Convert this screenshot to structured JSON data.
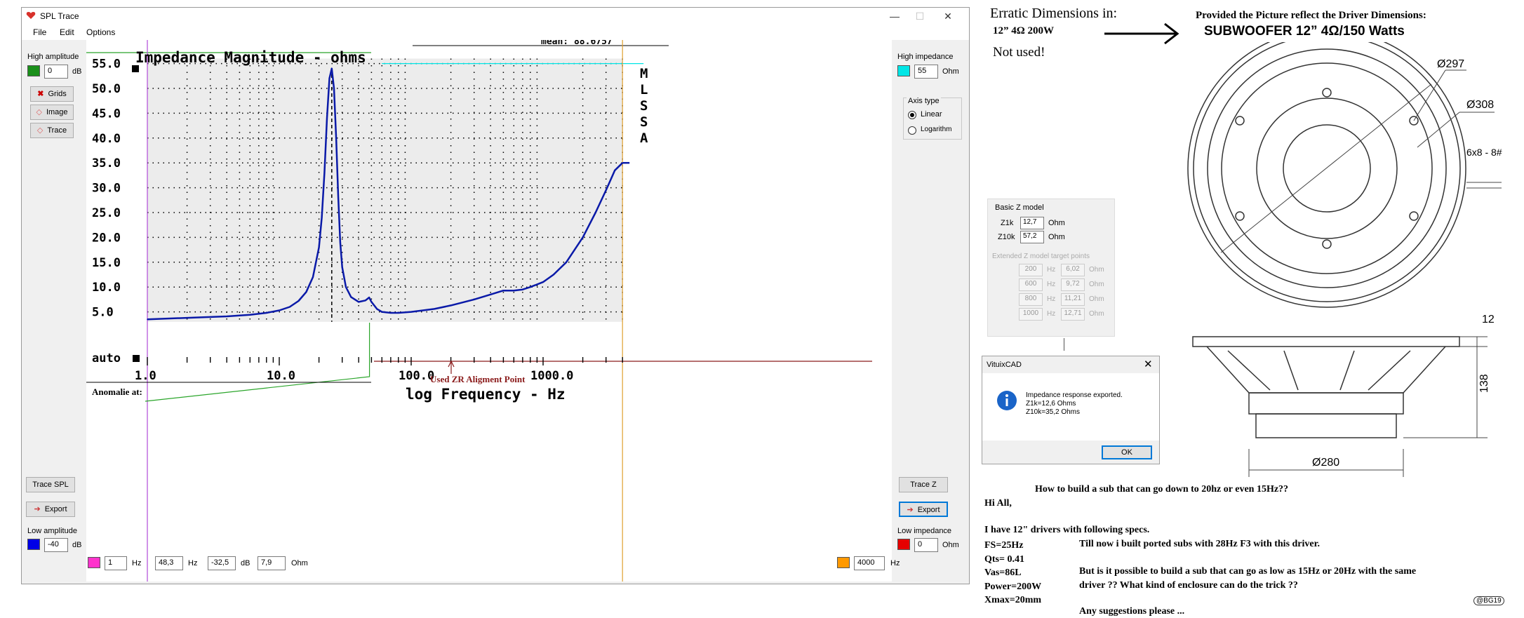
{
  "window": {
    "title": "SPL Trace",
    "menu": [
      "File",
      "Edit",
      "Options"
    ],
    "controls": {
      "minimize": "—",
      "maximize": "☐",
      "close": "✕"
    }
  },
  "left_panel": {
    "high_amplitude_label": "High amplitude",
    "high_amplitude_value": "0",
    "high_amplitude_unit": "dB",
    "high_amplitude_color": "#1a8f1a",
    "grids_label": "Grids",
    "image_label": "Image",
    "trace_label": "Trace",
    "trace_spl_label": "Trace SPL",
    "export_label": "Export",
    "low_amplitude_label": "Low amplitude",
    "low_amplitude_value": "-40",
    "low_amplitude_unit": "dB",
    "low_amplitude_color": "#0000e6"
  },
  "right_panel": {
    "high_impedance_label": "High impedance",
    "high_impedance_value": "55",
    "high_impedance_unit": "Ohm",
    "high_impedance_color": "#00e6e6",
    "axis_type_label": "Axis type",
    "axis_linear": "Linear",
    "axis_log": "Logarithm",
    "trace_z_label": "Trace Z",
    "export_label": "Export",
    "low_impedance_label": "Low impedance",
    "low_impedance_value": "0",
    "low_impedance_unit": "Ohm",
    "low_impedance_color": "#e60000"
  },
  "bottom_bar": {
    "marker_color": "#ff33cc",
    "marker_value": "1",
    "hz1": "Hz",
    "freq_value": "48,3",
    "hz2": "Hz",
    "db_value": "-32,5",
    "db_unit": "dB",
    "ohm_value": "7,9",
    "ohm_unit": "Ohm",
    "end_color": "#ff9900",
    "end_value": "4000",
    "end_unit": "Hz"
  },
  "plot": {
    "mean_text": "mean: 88.6757",
    "mlssa": [
      "M",
      "L",
      "S",
      "S",
      "A"
    ],
    "anomalie_label": "Anomalie at:",
    "zr_label": "Used ZR Aligment Point"
  },
  "chart_data": {
    "type": "line",
    "title": "Impedance Magnitude - ohms",
    "xlabel": "log Frequency - Hz",
    "ylabel": "",
    "x_scale": "log",
    "xlim": [
      1,
      4000
    ],
    "ylim": [
      0,
      60
    ],
    "x_tick_labels": [
      "1.0",
      "10.0",
      "100.0",
      "1000.0"
    ],
    "x_tick_values": [
      1,
      10,
      100,
      1000
    ],
    "y_tick_labels": [
      "5.0",
      "10.0",
      "15.0",
      "20.0",
      "25.0",
      "30.0",
      "35.0",
      "40.0",
      "45.0",
      "50.0",
      "55.0",
      "auto"
    ],
    "y_tick_values": [
      5,
      10,
      15,
      20,
      25,
      30,
      35,
      40,
      45,
      50,
      55,
      0
    ],
    "grid": true,
    "series": [
      {
        "color": "#0a1aa8",
        "x": [
          1,
          2,
          4,
          6,
          8,
          10,
          12,
          14,
          16,
          18,
          20,
          21,
          22,
          23,
          24,
          25,
          26,
          27,
          28,
          29,
          30,
          32,
          35,
          40,
          45,
          48,
          50,
          55,
          60,
          70,
          80,
          100,
          150,
          200,
          300,
          400,
          500,
          600,
          700,
          800,
          1000,
          1200,
          1500,
          2000,
          2500,
          3000,
          3500,
          4000
        ],
        "y": [
          3.5,
          3.8,
          4.1,
          4.4,
          4.8,
          5.3,
          6.0,
          7.2,
          9.0,
          12.0,
          18.0,
          24.0,
          33.0,
          44.0,
          52.0,
          54.0,
          50.0,
          40.0,
          28.0,
          19.0,
          14.0,
          10.0,
          8.0,
          7.0,
          7.3,
          7.9,
          7.0,
          5.6,
          5.0,
          4.8,
          4.8,
          5.0,
          5.6,
          6.3,
          7.5,
          8.5,
          9.3,
          9.3,
          9.5,
          10.0,
          11.0,
          12.5,
          15.0,
          20.0,
          25.0,
          29.5,
          33.5,
          35.0
        ]
      }
    ],
    "reference_lines": {
      "high_impedance": 55,
      "marker_freq": 1,
      "end_freq": 4000,
      "peak_freq": 25
    }
  },
  "notes": {
    "erratic_title": "Erratic Dimensions in:",
    "erratic_spec": "12” 4Ω 200W",
    "not_used": "Not used!",
    "provided_title": "Provided the Picture reflect the Driver Dimensions:",
    "subwoofer_title": "SUBWOOFER 12” 4Ω/150 Watts"
  },
  "drawing": {
    "d297": "Ø297",
    "d308": "Ø308",
    "holes": "6x8 - 8#",
    "h12": "12",
    "h138": "138",
    "d280": "Ø280"
  },
  "basic_z": {
    "title": "Basic Z model",
    "z1k_label": "Z1k",
    "z1k_value": "12,7",
    "z10k_label": "Z10k",
    "z10k_value": "57,2",
    "unit": "Ohm",
    "extended_title": "Extended Z model target points",
    "rows": [
      {
        "hz": "200",
        "unit": "Hz",
        "ohm": "6,02",
        "ohm_unit": "Ohm"
      },
      {
        "hz": "600",
        "unit": "Hz",
        "ohm": "9,72",
        "ohm_unit": "Ohm"
      },
      {
        "hz": "800",
        "unit": "Hz",
        "ohm": "11,21",
        "ohm_unit": "Ohm"
      },
      {
        "hz": "1000",
        "unit": "Hz",
        "ohm": "12,71",
        "ohm_unit": "Ohm"
      }
    ]
  },
  "vituix": {
    "title": "VituixCAD",
    "line1": "Impedance response exported.",
    "line2": "Z1k=12,6 Ohms",
    "line3": "Z10k=35,2 Ohms",
    "ok": "OK"
  },
  "post": {
    "question": "How to build a sub that can go down to 20hz or even 15Hz??",
    "greeting": "Hi All,",
    "intro": "I have 12\" drivers with following specs.",
    "specs": [
      "FS=25Hz",
      "Qts= 0.41",
      "Vas=86L",
      "Power=200W",
      "Xmax=20mm"
    ],
    "p1": "Till now i built ported subs with 28Hz F3 with this driver.",
    "p2a": "But is it possible to build a sub that can go as low as 15Hz or 20Hz with the same",
    "p2b": "driver ?? What kind of enclosure can do the trick ??",
    "p3": "Any suggestions please ...",
    "signature": "@BG19"
  }
}
